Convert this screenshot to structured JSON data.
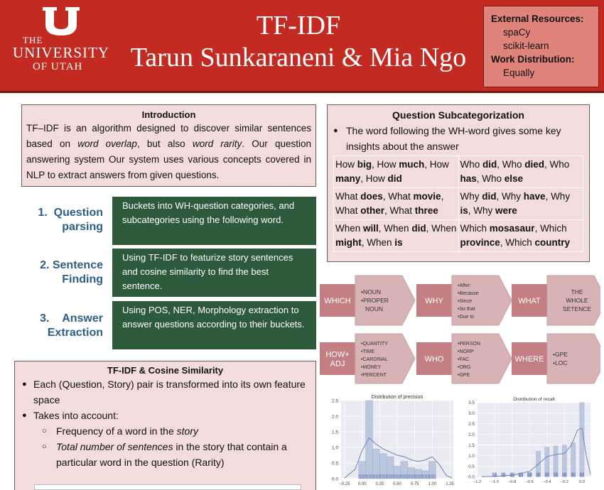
{
  "header": {
    "logo": {
      "line1": "THE",
      "line2": "UNIVERSITY",
      "line3": "OF UTAH"
    },
    "title_line1": "TF-IDF",
    "title_line2": "Tarun Sunkaraneni & Mia Ngo",
    "colors": {
      "header_bg": "#c32b22",
      "resources_bg": "#e0837a"
    }
  },
  "resources": {
    "heading": "External Resources:",
    "items": [
      "spaCy",
      "scikit-learn"
    ],
    "work_heading": "Work Distribution:",
    "work_value": "Equally"
  },
  "intro": {
    "heading": "Introduction",
    "parts": [
      "TF–IDF is an algorithm designed to discover similar sentences based on ",
      "word overlap",
      ", but also ",
      "word rarity",
      ". Our question answering system Our system uses various concepts covered in NLP to extract answers from given questions."
    ]
  },
  "steps": [
    {
      "num": "1.",
      "label_a": "Question",
      "label_b": "parsing",
      "text": "Buckets into WH-question categories, and subcategories using the following word."
    },
    {
      "num": "2.",
      "label_a": "Sentence",
      "label_b": "Finding",
      "text": "Using TF-IDF to featurize story sentences and cosine similarity to find the best sentence."
    },
    {
      "num": "3.",
      "label_a": "Answer",
      "label_b": "Extraction",
      "text": "Using POS, NER, Morphology extraction to answer questions according to their buckets."
    }
  ],
  "tfidf": {
    "heading": "TF-IDF & Cosine Similarity",
    "b1": "Each (Question, Story) pair is transformed into its own feature space",
    "b2": "Takes into account:",
    "s1a": "Frequency of a word in the ",
    "s1b": "story",
    "s2a": "Total number of sentences",
    "s2b": " in the story that contain a particular word in the question (Rarity)"
  },
  "subcat": {
    "heading": "Question Subcategorization",
    "bullet": "The word following the WH-word gives some key insights about the answer",
    "rows": [
      [
        "How <b>big</b>, How <b>much</b>, How <b>many</b>, How <b>did</b>",
        "Who <b>did</b>, Who <b>died</b>, Who <b>has</b>, Who <b>else</b>"
      ],
      [
        "What <b>does</b>, What <b>movie</b>, What <b>other</b>, What <b>three</b>",
        "Why <b>did</b>, Why <b>have</b>, Why <b>is</b>, Why <b>were</b>"
      ],
      [
        "When <b>will</b>, When <b>did</b>, When <b>might</b>, When <b>is</b>",
        "Which <b>mosasaur</b>, Which <b>province</b>, Which <b>country</b>"
      ]
    ]
  },
  "diagram": {
    "row1": [
      {
        "wh": "WHICH",
        "items": [
          "NOUN",
          "PROPER",
          "NOUN"
        ],
        "bullets": [
          true,
          true,
          false
        ]
      },
      {
        "wh": "WHY",
        "items": [
          "After:",
          "Because",
          "Since",
          "So that",
          "Due to"
        ],
        "bullets": [
          true,
          true,
          true,
          true,
          true
        ]
      },
      {
        "wh": "WHAT",
        "items": [
          "THE",
          "WHOLE",
          "SETENCE"
        ],
        "bullets": [
          false,
          false,
          false
        ]
      }
    ],
    "row2": [
      {
        "wh": "HOW+ ADJ",
        "items": [
          "QUANTITY",
          "TIME",
          "CARDINAL",
          "MONEY",
          "PERCENT"
        ],
        "bullets": [
          true,
          true,
          true,
          true,
          true
        ]
      },
      {
        "wh": "WHO",
        "items": [
          "PERSON",
          "NORP",
          "FAC",
          "ORG",
          "GPE"
        ],
        "bullets": [
          true,
          true,
          true,
          true,
          true
        ]
      },
      {
        "wh": "WHERE",
        "items": [
          "GPE",
          "LOC"
        ],
        "bullets": [
          true,
          true
        ]
      }
    ]
  },
  "chart_data": [
    {
      "type": "bar",
      "title": "Distribution of precision",
      "x": [
        0.0,
        0.1,
        0.2,
        0.3,
        0.4,
        0.5,
        0.6,
        0.7,
        0.8,
        0.9,
        1.0
      ],
      "values": [
        0.55,
        2.5,
        0.95,
        0.8,
        0.7,
        0.4,
        0.55,
        0.35,
        0.3,
        0.25,
        0.55
      ],
      "bin_width": 0.1,
      "xlim": [
        -0.3,
        1.3
      ],
      "ylim": [
        0,
        2.5
      ],
      "xticks": [
        "−0.25",
        "0.00",
        "0.25",
        "0.50",
        "0.75",
        "1.00",
        "1.25"
      ],
      "xtick_values": [
        -0.25,
        0.0,
        0.25,
        0.5,
        0.75,
        1.0,
        1.25
      ],
      "yticks": [
        "0.0",
        "0.5",
        "1.0",
        "1.5",
        "2.0",
        "2.5"
      ],
      "ytick_values": [
        0.0,
        0.5,
        1.0,
        1.5,
        2.0,
        2.5
      ],
      "kde": [
        [
          -0.25,
          0.02
        ],
        [
          -0.1,
          0.3
        ],
        [
          0.0,
          0.9
        ],
        [
          0.1,
          1.3
        ],
        [
          0.2,
          1.1
        ],
        [
          0.3,
          0.95
        ],
        [
          0.4,
          0.85
        ],
        [
          0.5,
          0.75
        ],
        [
          0.6,
          0.7
        ],
        [
          0.7,
          0.6
        ],
        [
          0.8,
          0.55
        ],
        [
          0.9,
          0.6
        ],
        [
          1.0,
          0.7
        ],
        [
          1.1,
          0.45
        ],
        [
          1.2,
          0.1
        ],
        [
          1.28,
          0.02
        ]
      ],
      "colors": {
        "bar": "#b7c3dd",
        "line": "#6b83b4"
      }
    },
    {
      "type": "bar",
      "title": "Distribution of recall",
      "x": [
        -1.0,
        -0.9,
        -0.8,
        -0.7,
        -0.6,
        -0.5,
        -0.4,
        -0.3,
        -0.2,
        -0.1,
        0.0
      ],
      "values": [
        0.05,
        0.05,
        0.1,
        0.15,
        0.2,
        1.2,
        1.4,
        1.45,
        1.5,
        1.6,
        3.5
      ],
      "bin_width": 0.05,
      "xlim": [
        -1.2,
        0.1
      ],
      "ylim": [
        0,
        3.5
      ],
      "xticks": [
        "−1.2",
        "−1.0",
        "−0.8",
        "−0.6",
        "−0.4",
        "−0.2",
        "0.0"
      ],
      "xtick_values": [
        -1.2,
        -1.0,
        -0.8,
        -0.6,
        -0.4,
        -0.2,
        0.0
      ],
      "yticks": [
        "0.0",
        "0.5",
        "1.0",
        "1.5",
        "2.0",
        "2.5",
        "3.0",
        "3.5"
      ],
      "ytick_values": [
        0.0,
        0.5,
        1.0,
        1.5,
        2.0,
        2.5,
        3.0,
        3.5
      ],
      "kde": [
        [
          -1.15,
          0.0
        ],
        [
          -1.0,
          0.02
        ],
        [
          -0.8,
          0.08
        ],
        [
          -0.6,
          0.25
        ],
        [
          -0.5,
          0.6
        ],
        [
          -0.4,
          0.95
        ],
        [
          -0.3,
          1.05
        ],
        [
          -0.2,
          1.1
        ],
        [
          -0.12,
          1.5
        ],
        [
          -0.05,
          2.2
        ],
        [
          0.0,
          2.3
        ],
        [
          0.05,
          1.0
        ],
        [
          0.1,
          0.1
        ]
      ],
      "colors": {
        "bar": "#b7c3dd",
        "line": "#6b83b4"
      }
    }
  ]
}
